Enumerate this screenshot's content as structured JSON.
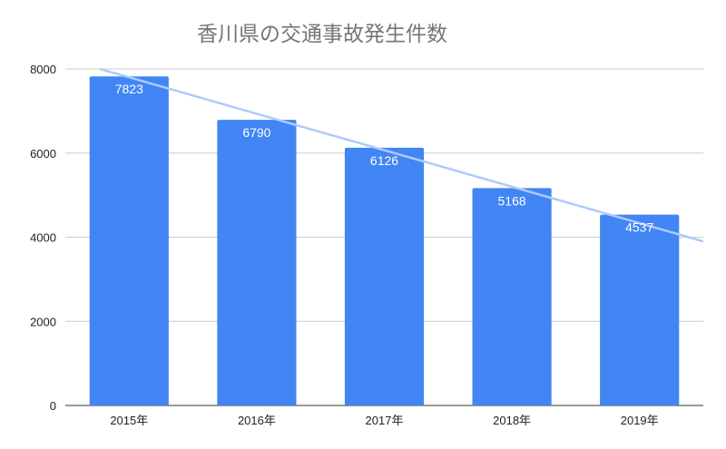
{
  "chart_data": {
    "type": "bar",
    "title": "香川県の交通事故発生件数",
    "xlabel": "",
    "ylabel": "",
    "categories": [
      "2015年",
      "2016年",
      "2017年",
      "2018年",
      "2019年"
    ],
    "values": [
      7823,
      6790,
      6126,
      5168,
      4537
    ],
    "ylim": [
      0,
      8000
    ],
    "yticks": [
      "0",
      "2000",
      "4000",
      "6000",
      "8000"
    ],
    "data_labels": [
      "7823",
      "6790",
      "6126",
      "5168",
      "4537"
    ],
    "grid": true,
    "legend": "none",
    "bar_color": "#4285f4",
    "trendline": {
      "type": "linear",
      "color": "#aecbfa",
      "start_value": 8000,
      "end_value": 3900
    }
  }
}
